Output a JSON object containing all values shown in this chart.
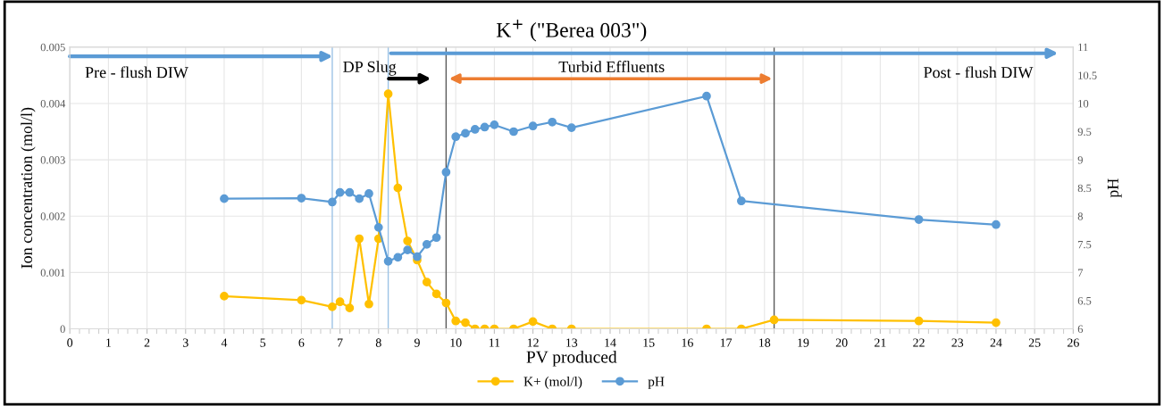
{
  "chart_data": {
    "type": "line",
    "title": "K$^{+}$ (\"Berea 003\")",
    "xlabel": "PV produced",
    "ylabel": "Ion concentration (mol/l)",
    "y2label": "pH",
    "xlim": [
      0,
      26
    ],
    "xticks": [
      0,
      1,
      2,
      3,
      4,
      5,
      6,
      7,
      8,
      9,
      10,
      11,
      12,
      13,
      14,
      15,
      16,
      17,
      18,
      19,
      20,
      21,
      22,
      23,
      24,
      25,
      26
    ],
    "ylim": [
      0,
      0.005
    ],
    "yticks": [
      0,
      0.001,
      0.002,
      0.003,
      0.004,
      0.005
    ],
    "y2lim": [
      6,
      11
    ],
    "y2ticks": [
      6,
      6.5,
      7,
      7.5,
      8,
      8.5,
      9,
      9.5,
      10,
      10.5,
      11
    ],
    "grid": true,
    "legend": "bottom",
    "marker": "circle",
    "line_style": "solid",
    "series": [
      {
        "name": "K+ (mol/l)",
        "color": "#ffc000",
        "x": [
          4,
          6,
          6.8,
          7,
          7.25,
          7.5,
          7.75,
          8,
          8.25,
          8.5,
          8.75,
          9,
          9.25,
          9.5,
          9.75,
          10,
          10.25,
          10.5,
          10.75,
          11,
          11.5,
          12,
          12.5,
          13,
          16.5,
          17.4,
          18.25,
          22,
          24
        ],
        "values": [
          0.00058,
          0.00051,
          0.00039,
          0.00048,
          0.00037,
          0.0016,
          0.00044,
          0.0016,
          0.00417,
          0.0025,
          0.00156,
          0.00122,
          0.00083,
          0.00062,
          0.00046,
          0.00014,
          0.00011,
          0,
          0,
          0,
          0,
          0.00013,
          0,
          0,
          0,
          0,
          0.00016,
          0.00014,
          0.00011
        ]
      },
      {
        "name": "pH",
        "color": "#5b9bd5",
        "axis": "y2",
        "x": [
          4,
          6,
          6.8,
          7,
          7.25,
          7.5,
          7.75,
          8,
          8.25,
          8.5,
          8.75,
          9,
          9.25,
          9.5,
          9.75,
          10,
          10.25,
          10.5,
          10.75,
          11,
          11.5,
          12,
          12.5,
          13,
          16.5,
          17.4,
          22,
          24
        ],
        "values": [
          8.31,
          8.32,
          8.25,
          8.42,
          8.42,
          8.31,
          8.4,
          7.8,
          7.2,
          7.27,
          7.4,
          7.28,
          7.5,
          7.62,
          8.78,
          9.41,
          9.47,
          9.54,
          9.58,
          9.62,
          9.5,
          9.6,
          9.67,
          9.57,
          10.13,
          8.27,
          7.94,
          7.85
        ]
      }
    ],
    "ref_lines": [
      {
        "axis": "x",
        "value": 6.8,
        "color": "#9dc3e6"
      },
      {
        "axis": "x",
        "value": 8.25,
        "color": "#9dc3e6"
      },
      {
        "axis": "x",
        "value": 9.75,
        "color": "#595959"
      },
      {
        "axis": "x",
        "value": 18.25,
        "color": "#595959"
      }
    ],
    "annotations": [
      "Pre - flush DIW",
      "DP Slug",
      "Turbid Effluents",
      "Post - flush DIW"
    ]
  }
}
